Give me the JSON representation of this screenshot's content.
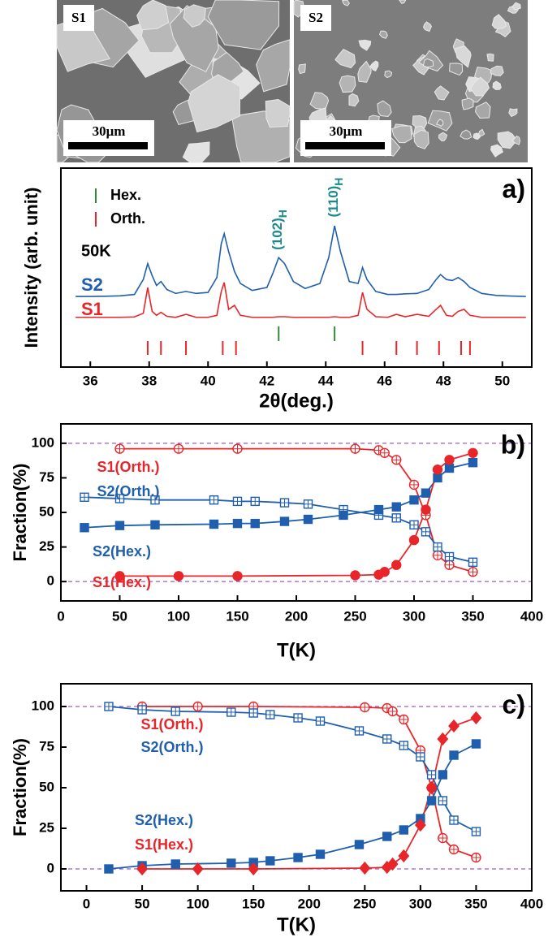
{
  "images": [
    {
      "label": "S1",
      "scale_bar": "30μm"
    },
    {
      "label": "S2",
      "scale_bar": "30μm"
    }
  ],
  "chart_data": [
    {
      "type": "line",
      "label": "a)",
      "x_label": "2θ(deg.)",
      "y_label": "Intensity (arb. unit)",
      "annotation": "50K",
      "peak_labels": [
        {
          "text": "(102)",
          "subscript": "H"
        },
        {
          "text": "(110)",
          "subscript": "H"
        }
      ],
      "xlim": [
        35,
        51
      ],
      "xticks": [
        36,
        38,
        40,
        42,
        44,
        46,
        48,
        50
      ],
      "ylim": [
        0,
        100
      ],
      "x": [
        35.5,
        36,
        36.5,
        37,
        37.5,
        37.8,
        37.95,
        38.1,
        38.25,
        38.4,
        38.6,
        38.9,
        39.25,
        39.6,
        40,
        40.3,
        40.45,
        40.55,
        40.7,
        40.9,
        41.1,
        41.5,
        42,
        42.2,
        42.4,
        42.6,
        42.9,
        43.3,
        43.8,
        44.1,
        44.3,
        44.5,
        44.8,
        45.1,
        45.25,
        45.4,
        45.7,
        46.1,
        46.4,
        46.7,
        47.1,
        47.5,
        47.75,
        47.9,
        48.1,
        48.3,
        48.5,
        48.7,
        48.9,
        49.3,
        49.8,
        50.3,
        50.8
      ],
      "series": [
        {
          "name": "S2",
          "color": "#1f5fad",
          "values": [
            35.5,
            35.5,
            35.6,
            35.8,
            36.5,
            44,
            52,
            46,
            41,
            43,
            39,
            37,
            38,
            37,
            37.5,
            45,
            62,
            67,
            58,
            48,
            42,
            38.5,
            40,
            47,
            55,
            52,
            43,
            39.5,
            42,
            55,
            71,
            58,
            43,
            42,
            50,
            44,
            38,
            36.5,
            36.5,
            36.8,
            37,
            39,
            44,
            46.5,
            44,
            43.5,
            45,
            43,
            40,
            37,
            36,
            35.7,
            35.5
          ]
        },
        {
          "name": "S1",
          "color": "#e8262a",
          "values": [
            25,
            25,
            25,
            25,
            25.2,
            27,
            40,
            28,
            26,
            27.5,
            25.5,
            25,
            26.5,
            25,
            25,
            26,
            38,
            42.5,
            29,
            31,
            26,
            25,
            25,
            25,
            25.3,
            25.3,
            25,
            25,
            25,
            25,
            25.3,
            25,
            25,
            26,
            37.5,
            29,
            25.3,
            25,
            26.5,
            25.3,
            26.5,
            25.5,
            29,
            31,
            26,
            25.5,
            28,
            29,
            26,
            25,
            25,
            25,
            25
          ]
        }
      ],
      "reflections": [
        {
          "name": "Hex.",
          "color": "#2e8b3c",
          "positions": [
            42.4,
            44.3
          ]
        },
        {
          "name": "Orth.",
          "color": "#e8262a",
          "positions": [
            37.95,
            38.4,
            39.25,
            40.5,
            40.95,
            45.25,
            46.4,
            47.1,
            47.85,
            48.6,
            48.9
          ]
        }
      ]
    },
    {
      "type": "line",
      "label": "b)",
      "x_label": "T(K)",
      "y_label": "Fraction(%)",
      "xlim": [
        0,
        400
      ],
      "xticks": [
        0,
        50,
        100,
        150,
        200,
        250,
        300,
        350,
        400
      ],
      "ylim": [
        -14,
        114
      ],
      "yticks": [
        0,
        25,
        50,
        75,
        100
      ],
      "hlines": [
        0,
        100
      ],
      "series": [
        {
          "name": "S1(Orth.)",
          "color": "#e8262a",
          "marker": "circle-plus",
          "x": [
            50,
            100,
            150,
            250,
            270,
            275,
            285,
            300,
            310,
            320,
            330,
            350
          ],
          "values": [
            96,
            96,
            96,
            96,
            95,
            93,
            88,
            70,
            48,
            19,
            12,
            7
          ]
        },
        {
          "name": "S2(Orth.)",
          "color": "#1f5fad",
          "marker": "square-plus",
          "x": [
            20,
            50,
            80,
            130,
            150,
            165,
            190,
            210,
            240,
            270,
            285,
            300,
            310,
            320,
            330,
            350
          ],
          "values": [
            61,
            60,
            59,
            59,
            58,
            58,
            57,
            56,
            52,
            48,
            46,
            41,
            36,
            25,
            18,
            14
          ]
        },
        {
          "name": "S2(Hex.)",
          "color": "#1f5fad",
          "marker": "square",
          "x": [
            20,
            50,
            80,
            130,
            150,
            165,
            190,
            210,
            240,
            270,
            285,
            300,
            310,
            320,
            330,
            350
          ],
          "values": [
            39,
            40.5,
            41,
            41.5,
            42,
            42,
            43.5,
            45,
            48,
            52,
            54,
            59,
            64,
            75,
            82,
            86
          ]
        },
        {
          "name": "S1(Hex.)",
          "color": "#e8262a",
          "marker": "circle",
          "x": [
            50,
            100,
            150,
            250,
            270,
            275,
            285,
            300,
            310,
            320,
            330,
            350
          ],
          "values": [
            4,
            4,
            4,
            4.5,
            5,
            7,
            12,
            30,
            52,
            81,
            88,
            93
          ]
        }
      ]
    },
    {
      "type": "line",
      "label": "c)",
      "x_label": "T(K)",
      "y_label": "Fraction(%)",
      "xlim": [
        -23,
        400
      ],
      "xticks": [
        0,
        50,
        100,
        150,
        200,
        250,
        300,
        350,
        400
      ],
      "ylim": [
        -13.5,
        114
      ],
      "yticks": [
        0,
        25,
        50,
        75,
        100
      ],
      "hlines": [
        0,
        100
      ],
      "series": [
        {
          "name": "S1(Orth.)",
          "color": "#e8262a",
          "marker": "circle-plus",
          "x": [
            50,
            100,
            150,
            250,
            270,
            275,
            285,
            300,
            310,
            320,
            330,
            350
          ],
          "values": [
            100,
            100,
            100,
            99.5,
            99,
            97,
            92,
            73,
            50,
            19,
            12,
            7
          ]
        },
        {
          "name": "S2(Orth.)",
          "color": "#1f5fad",
          "marker": "square-plus",
          "x": [
            20,
            50,
            80,
            130,
            150,
            165,
            190,
            210,
            245,
            270,
            285,
            300,
            310,
            320,
            330,
            350
          ],
          "values": [
            100,
            98,
            97,
            96.5,
            96,
            95,
            93,
            91,
            85,
            80,
            76,
            69,
            58,
            42,
            30,
            23
          ]
        },
        {
          "name": "S2(Hex.)",
          "color": "#1f5fad",
          "marker": "square",
          "x": [
            20,
            50,
            80,
            130,
            150,
            165,
            190,
            210,
            245,
            270,
            285,
            300,
            310,
            320,
            330,
            350
          ],
          "values": [
            0,
            2,
            3,
            3.5,
            4,
            5,
            7,
            9,
            15,
            20,
            24,
            31,
            42,
            58,
            70,
            77
          ]
        },
        {
          "name": "S1(Hex.)",
          "color": "#e8262a",
          "marker": "diamond",
          "x": [
            50,
            100,
            150,
            250,
            270,
            275,
            285,
            300,
            310,
            320,
            330,
            350
          ],
          "values": [
            0,
            0,
            0,
            0.5,
            1,
            3,
            8,
            27,
            50,
            80,
            88,
            93
          ]
        }
      ]
    }
  ]
}
